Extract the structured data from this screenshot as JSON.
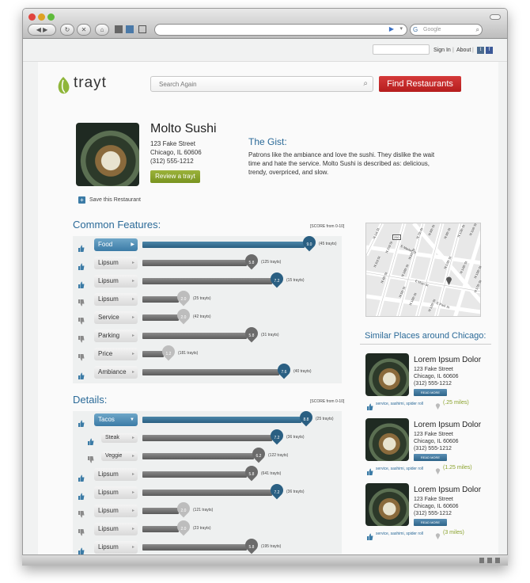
{
  "browser": {
    "search_placeholder": "Google"
  },
  "toplinks": {
    "sign_in": "Sign In",
    "sep": "|",
    "about": "About",
    "sep2": "|"
  },
  "header": {
    "logo": "trayt",
    "search_placeholder": "Search Again",
    "find_button": "Find Restaurants"
  },
  "restaurant": {
    "name": "Molto Sushi",
    "address1": "123 Fake Street",
    "address2": "Chicago, IL 60606",
    "phone": "(312) 555-1212",
    "review_button": "Review a trayt",
    "save_label": "Save this Restaurant"
  },
  "gist": {
    "heading": "The Gist:",
    "text": "Patrons like the ambiance and love the sushi. They dislike the wait time and hate the service. Molto Sushi is described as: delicious, trendy, overpriced, and slow."
  },
  "features": {
    "heading": "Common Features:",
    "score_label": "[SCORE from 0-10]",
    "rows": [
      {
        "label": "Food",
        "score": "9.0",
        "count": "(45 trayts)",
        "active": true,
        "thumb": "up",
        "value": 9.0
      },
      {
        "label": "Lipsum",
        "score": "5.8",
        "count": "(125 trayts)",
        "active": false,
        "thumb": "up",
        "value": 5.8
      },
      {
        "label": "Lipsum",
        "score": "7.2",
        "count": "(15 trayts)",
        "active": false,
        "thumb": "up",
        "value": 7.2
      },
      {
        "label": "Lipsum",
        "score": "2.0",
        "count": "(25 trayts)",
        "active": false,
        "thumb": "down",
        "value": 2.0
      },
      {
        "label": "Service",
        "score": "2.0",
        "count": "(42 trayts)",
        "active": false,
        "thumb": "down",
        "value": 2.0
      },
      {
        "label": "Parking",
        "score": "5.8",
        "count": "(31 trayts)",
        "active": false,
        "thumb": "down",
        "value": 5.8
      },
      {
        "label": "Price",
        "score": "1.2",
        "count": "(181 trayts)",
        "active": false,
        "thumb": "down",
        "value": 1.2
      },
      {
        "label": "Ambiance",
        "score": "7.6",
        "count": "(40 trayts)",
        "active": false,
        "thumb": "up",
        "value": 7.6
      }
    ]
  },
  "details": {
    "heading": "Details:",
    "score_label": "[SCORE from 0-10]",
    "rows": [
      {
        "label": "Tacos",
        "score": "8.8",
        "count": "(25 trayts)",
        "active": true,
        "thumb": "up",
        "value": 8.8,
        "sub": false
      },
      {
        "label": "Steak",
        "score": "7.2",
        "count": "(36 trayts)",
        "active": false,
        "thumb": "up",
        "value": 7.2,
        "sub": true
      },
      {
        "label": "Veggie",
        "score": "6.2",
        "count": "(122 trayts)",
        "active": false,
        "thumb": "down",
        "value": 6.2,
        "sub": true
      },
      {
        "label": "Lipsum",
        "score": "5.8",
        "count": "(641 trayts)",
        "active": false,
        "thumb": "up",
        "value": 5.8,
        "sub": false
      },
      {
        "label": "Lipsum",
        "score": "7.2",
        "count": "(36 trayts)",
        "active": false,
        "thumb": "up",
        "value": 7.2,
        "sub": false
      },
      {
        "label": "Lipsum",
        "score": "2.0",
        "count": "(121 trayts)",
        "active": false,
        "thumb": "down",
        "value": 2.0,
        "sub": false
      },
      {
        "label": "Lipsum",
        "score": "2.0",
        "count": "(23 trayts)",
        "active": false,
        "thumb": "down",
        "value": 2.0,
        "sub": false
      },
      {
        "label": "Lipsum",
        "score": "5.8",
        "count": "(195 trayts)",
        "active": false,
        "thumb": "up",
        "value": 5.8,
        "sub": false
      }
    ]
  },
  "map": {
    "streets": [
      "E Market St",
      "E Main St",
      "E Park St",
      "N 1st St",
      "N 2nd St",
      "N 3rd St",
      "N 4th St",
      "N 5th St",
      "N 6th St",
      "N 7th St",
      "N 8th St",
      "N 9th St",
      "N 10th St",
      "N 11th St",
      "N 12th St",
      "N 13th St",
      "N 14th St",
      "N 15th St",
      "N 16th St",
      "N 17th St",
      "N 18th St",
      "250"
    ]
  },
  "similar": {
    "heading": "Similar Places around Chicago:",
    "items": [
      {
        "name": "Lorem Ipsum Dolor",
        "address1": "123 Fake Street",
        "address2": "Chicago, IL 60606",
        "phone": "(312) 555-1212",
        "readmore": "READ MORE",
        "tags": "service, sashimi, spider roll",
        "distance": "(.25 miles)"
      },
      {
        "name": "Lorem Ipsum Dolor",
        "address1": "123 Fake Street",
        "address2": "Chicago, IL 60606",
        "phone": "(312) 555-1212",
        "readmore": "READ MORE",
        "tags": "service, sashimi, spider roll",
        "distance": "(1.25 miles)"
      },
      {
        "name": "Lorem Ipsum Dolor",
        "address1": "123 Fake Street",
        "address2": "Chicago, IL 60606",
        "phone": "(312) 555-1212",
        "readmore": "READ MORE",
        "tags": "service, sashimi, spider roll",
        "distance": "(3 miles)"
      }
    ]
  }
}
